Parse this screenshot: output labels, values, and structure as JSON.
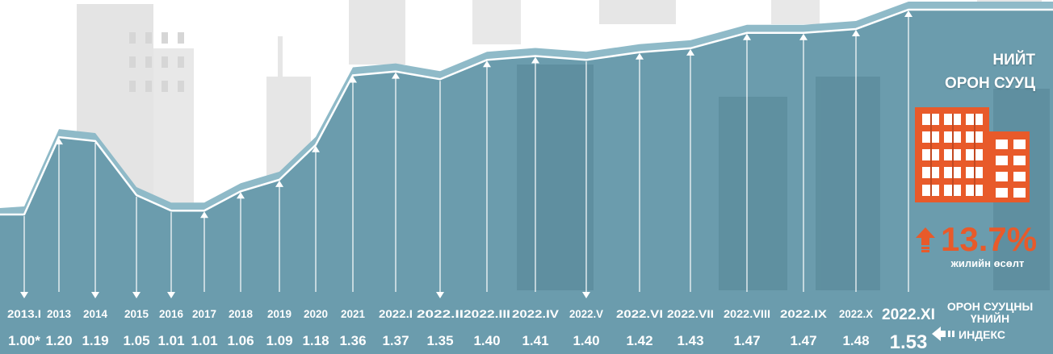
{
  "chart_data": {
    "type": "area",
    "categories": [
      "2013.I",
      "2013",
      "2014",
      "2015",
      "2016",
      "2017",
      "2018",
      "2019",
      "2020",
      "2021",
      "2022.I",
      "2022.II",
      "2022.III",
      "2022.IV",
      "2022.V",
      "2022.VI",
      "2022.VII",
      "2022.VIII",
      "2022.IX",
      "2022.X",
      "2022.XI"
    ],
    "values": [
      1.0,
      1.2,
      1.19,
      1.05,
      1.01,
      1.01,
      1.06,
      1.09,
      1.18,
      1.36,
      1.37,
      1.35,
      1.4,
      1.41,
      1.4,
      1.42,
      1.43,
      1.47,
      1.47,
      1.48,
      1.53
    ],
    "value_labels": [
      "1.00*",
      "1.20",
      "1.19",
      "1.05",
      "1.01",
      "1.01",
      "1.06",
      "1.09",
      "1.18",
      "1.36",
      "1.37",
      "1.35",
      "1.40",
      "1.41",
      "1.40",
      "1.42",
      "1.43",
      "1.47",
      "1.47",
      "1.48",
      "1.53"
    ],
    "arrow_down": [
      true,
      false,
      true,
      true,
      true,
      false,
      false,
      false,
      false,
      false,
      false,
      true,
      false,
      false,
      true,
      false,
      false,
      false,
      false,
      false,
      false
    ],
    "highlight_last": true
  },
  "panel": {
    "title_line1": "НИЙТ",
    "title_line2": "ОРОН СУУЦ",
    "growth_value": "13.7%",
    "growth_label": "жилийн өсөлт",
    "index_label_line1": "ОРОН СУУЦНЫ",
    "index_label_line2": "ҮНИЙН",
    "index_label_line3": "ИНДЕКС"
  },
  "colors": {
    "fill": "#6b9cad",
    "band": "#8fbac8",
    "line": "#ffffff",
    "accent": "#e85a2a",
    "skyline": "#e2e2e2"
  },
  "icons": {
    "building": "building-icon",
    "growth_arrow": "arrow-up-icon",
    "pointer": "arrow-left-icon"
  }
}
